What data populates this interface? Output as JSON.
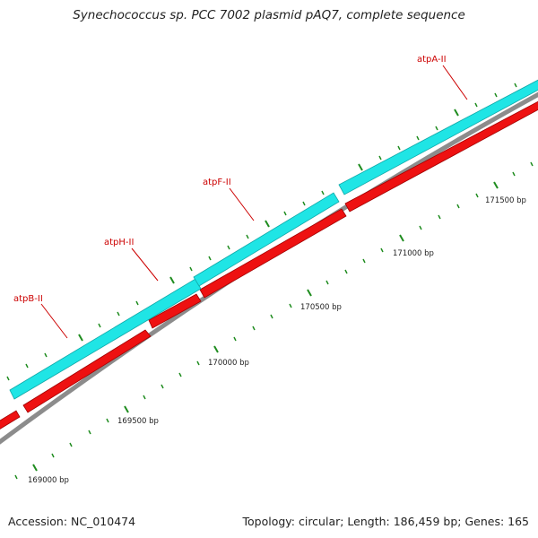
{
  "title": "Synechococcus sp. PCC 7002 plasmid pAQ7, complete sequence",
  "footer": {
    "accession": "Accession: NC_010474",
    "summary": "Topology: circular; Length: 186,459 bp; Genes: 165"
  },
  "colors": {
    "forward_gene": "#1fe5e5",
    "reverse_gene": "#ee1111",
    "backbone": "#8c8c8c",
    "tick": "#1f8c1f",
    "label": "#cc0000"
  },
  "gene_labels": [
    {
      "id": "atpB",
      "text": "atpB-II"
    },
    {
      "id": "atpH",
      "text": "atpH-II"
    },
    {
      "id": "atpF",
      "text": "atpF-II"
    },
    {
      "id": "atpA",
      "text": "atpA-II"
    }
  ],
  "ruler_labels": [
    {
      "id": "169000",
      "text": "169000 bp"
    },
    {
      "id": "169500",
      "text": "169500 bp"
    },
    {
      "id": "170000",
      "text": "170000 bp"
    },
    {
      "id": "170500",
      "text": "170500 bp"
    },
    {
      "id": "171000",
      "text": "171000 bp"
    },
    {
      "id": "171500",
      "text": "171500 bp"
    }
  ]
}
